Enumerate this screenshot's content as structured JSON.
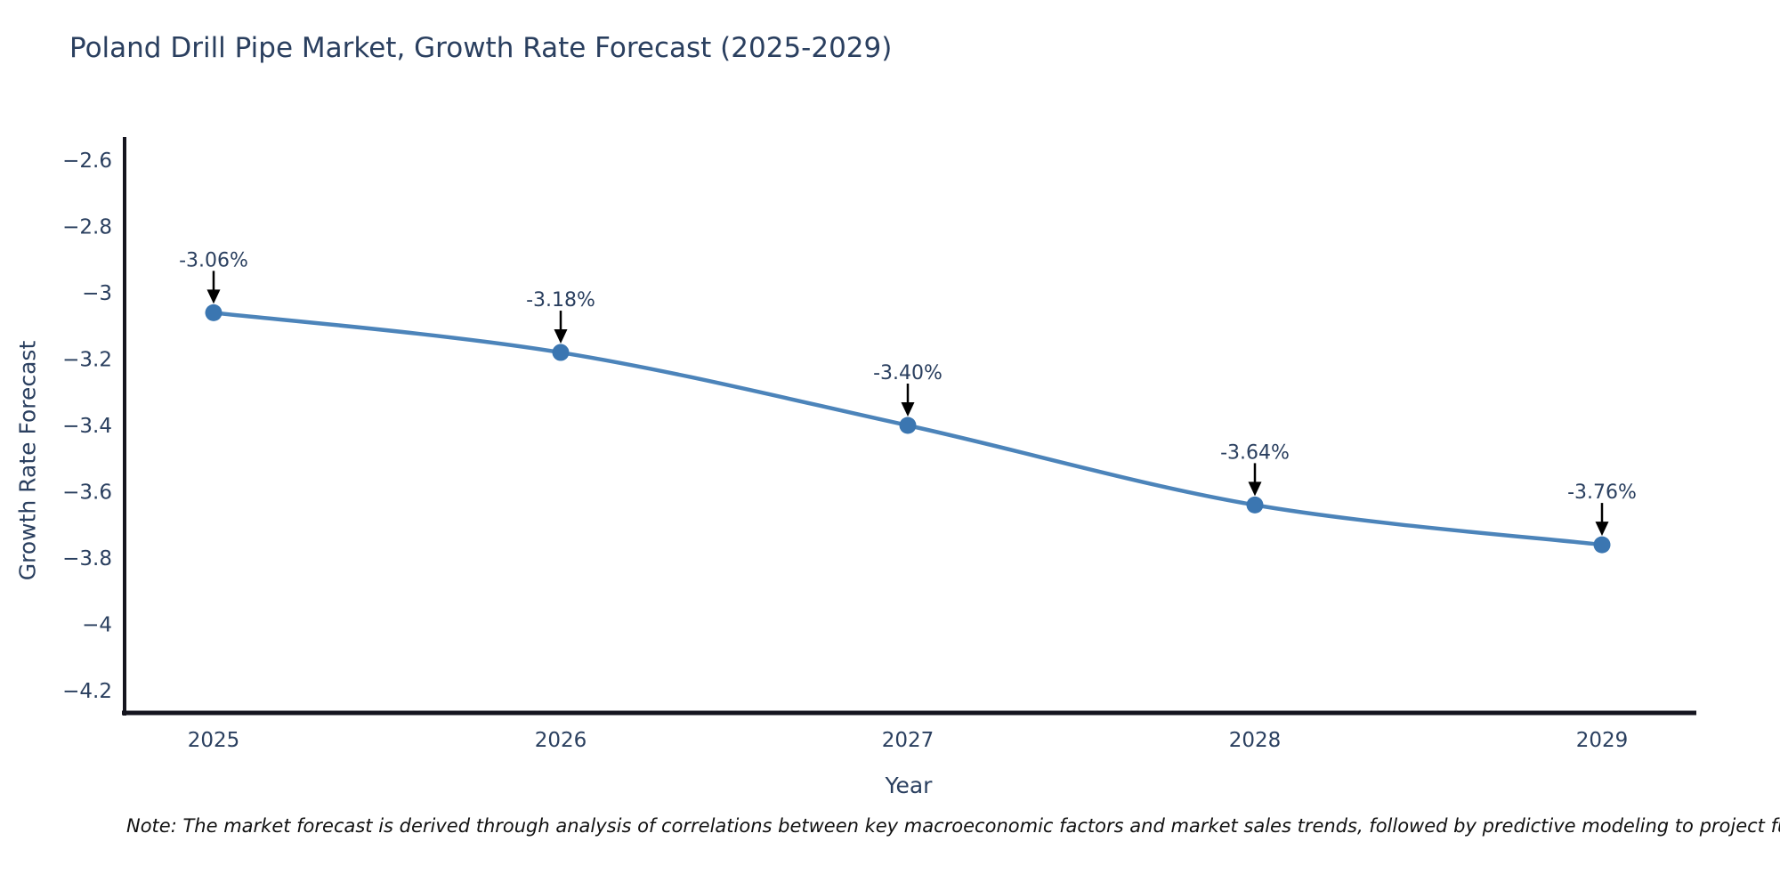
{
  "header": {
    "title": "Poland Drill Pipe Market, Growth Rate Forecast (2025-2029)"
  },
  "chart_data": {
    "type": "line",
    "title": "Poland Drill Pipe Market, Growth Rate Forecast (2025-2029)",
    "xlabel": "Year",
    "ylabel": "Growth Rate Forecast",
    "x": [
      2025,
      2026,
      2027,
      2028,
      2029
    ],
    "series": [
      {
        "name": "Growth Rate Forecast",
        "values": [
          -3.06,
          -3.18,
          -3.4,
          -3.64,
          -3.76
        ]
      }
    ],
    "point_labels": [
      "-3.06%",
      "-3.18%",
      "-3.40%",
      "-3.64%",
      "-3.76%"
    ],
    "xtick_labels": [
      "2025",
      "2026",
      "2027",
      "2028",
      "2029"
    ],
    "ytick_values": [
      -2.6,
      -2.8,
      -3,
      -3.2,
      -3.4,
      -3.6,
      -3.8,
      -4,
      -4.2
    ],
    "ytick_labels": [
      "−2.6",
      "−2.8",
      "−3",
      "−3.2",
      "−3.4",
      "−3.6",
      "−3.8",
      "−4",
      "−4.2"
    ],
    "ylim": [
      -4.2,
      -2.6
    ],
    "grid": false,
    "legend": "none",
    "line_shape": "spline",
    "colors": {
      "line": "#4c84ba",
      "marker": "#3b76b1",
      "axis": "#15151f",
      "tick_text": "#2a3f5f",
      "label_text": "#2a3f5f",
      "arrow": "#000000"
    }
  },
  "note": {
    "text": "Note: The market forecast is derived through analysis of correlations between key macroeconomic factors and market sales trends, followed by predictive modeling to project future sa"
  }
}
